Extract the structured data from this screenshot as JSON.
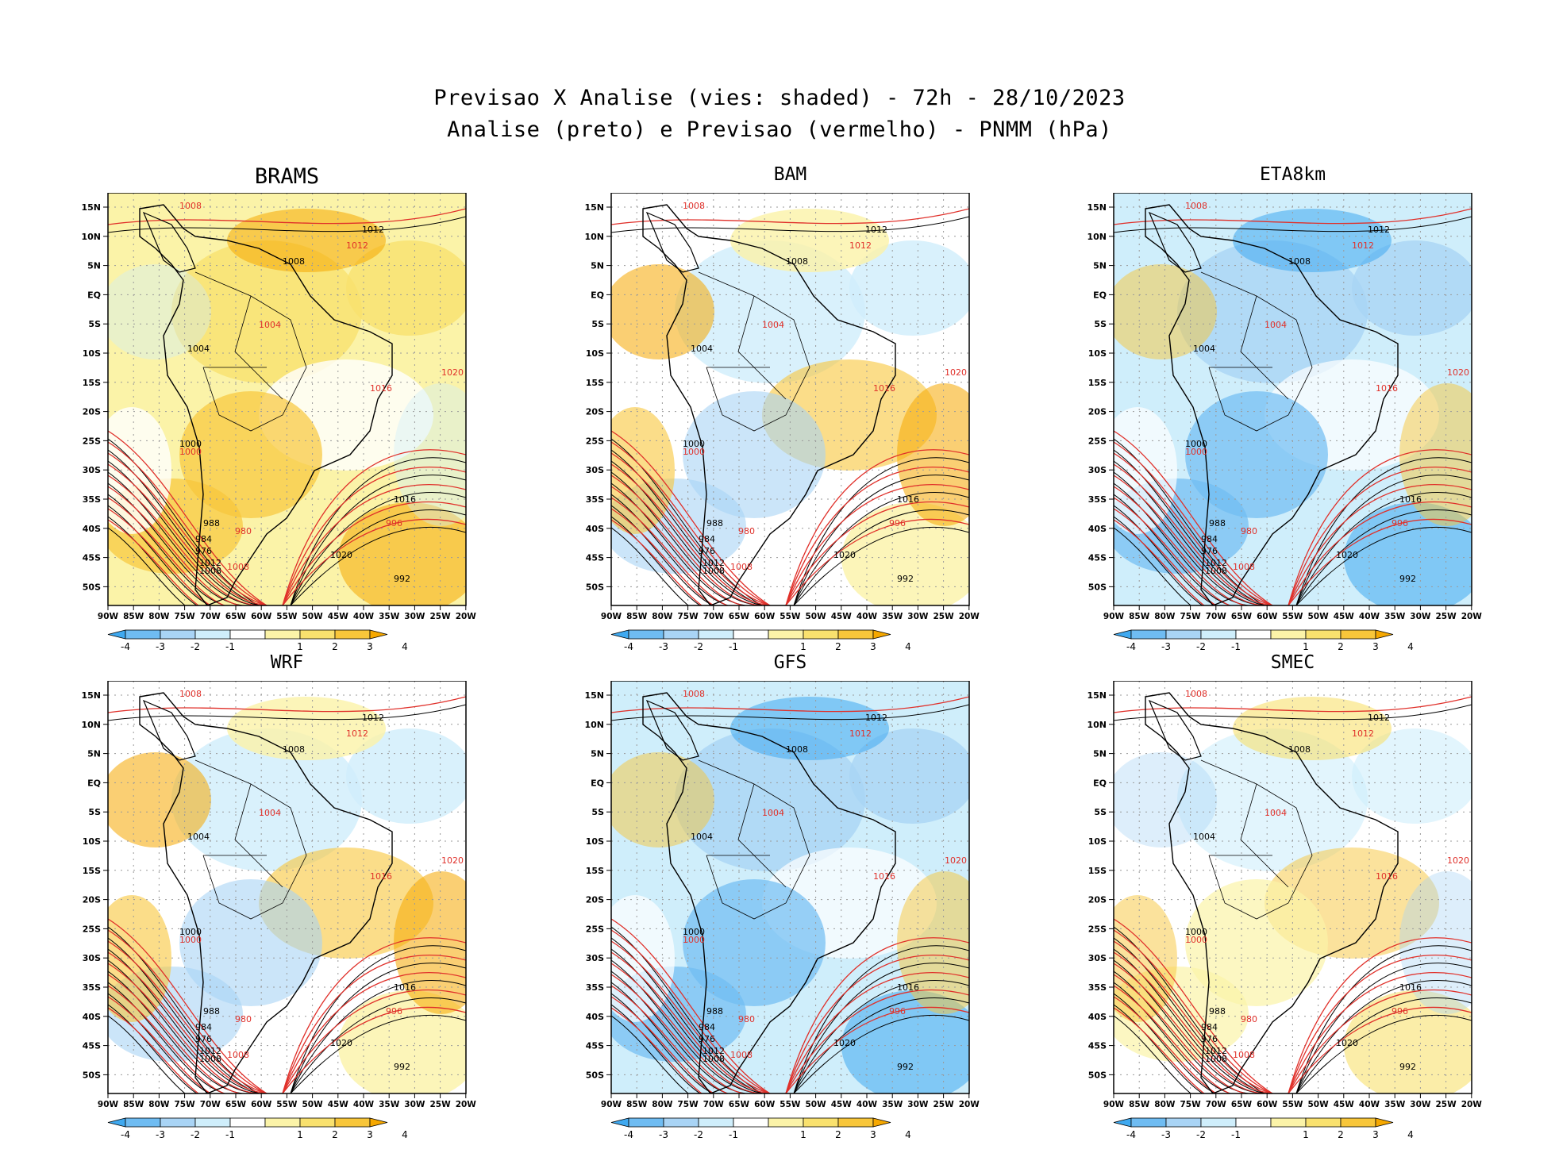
{
  "figure": {
    "title_line1": "Previsao X Analise (vies: shaded) - 72h - 28/10/2023",
    "title_line2": "Analise (preto) e Previsao (vermelho) - PNMM (hPa)"
  },
  "panels": [
    {
      "title": "BRAMS",
      "variant": "warm"
    },
    {
      "title": "BAM",
      "variant": "mixed"
    },
    {
      "title": "ETA8km",
      "variant": "cold"
    },
    {
      "title": "WRF",
      "variant": "mixed"
    },
    {
      "title": "GFS",
      "variant": "cold"
    },
    {
      "title": "SMEC",
      "variant": "light"
    }
  ],
  "axes": {
    "lat_labels": [
      "15N",
      "10N",
      "5N",
      "EQ",
      "5S",
      "10S",
      "15S",
      "20S",
      "25S",
      "30S",
      "35S",
      "40S",
      "45S",
      "50S"
    ],
    "lon_labels": [
      "90W",
      "85W",
      "80W",
      "75W",
      "70W",
      "65W",
      "60W",
      "55W",
      "50W",
      "45W",
      "40W",
      "35W",
      "30W",
      "25W",
      "20W"
    ]
  },
  "colorbar": {
    "tick_labels": [
      "-4",
      "-3",
      "-2",
      "-1",
      "1",
      "2",
      "3",
      "4"
    ],
    "colors": [
      "#3fa9f0",
      "#6fbcf2",
      "#a9d4f5",
      "#cfeefb",
      "#ffffff",
      "#fbf3a8",
      "#f9e16e",
      "#f8c63a",
      "#f6a800"
    ]
  },
  "contour_labels": {
    "analysis": [
      "1012",
      "1008",
      "1004",
      "1000",
      "1016",
      "1020",
      "992",
      "988",
      "984",
      "976"
    ],
    "forecast": [
      "1008",
      "1012",
      "1004",
      "1016",
      "1020",
      "1000",
      "996",
      "980"
    ]
  },
  "colors": {
    "analysis_line": "#000000",
    "forecast_line": "#e0302a",
    "frame": "#000000"
  }
}
